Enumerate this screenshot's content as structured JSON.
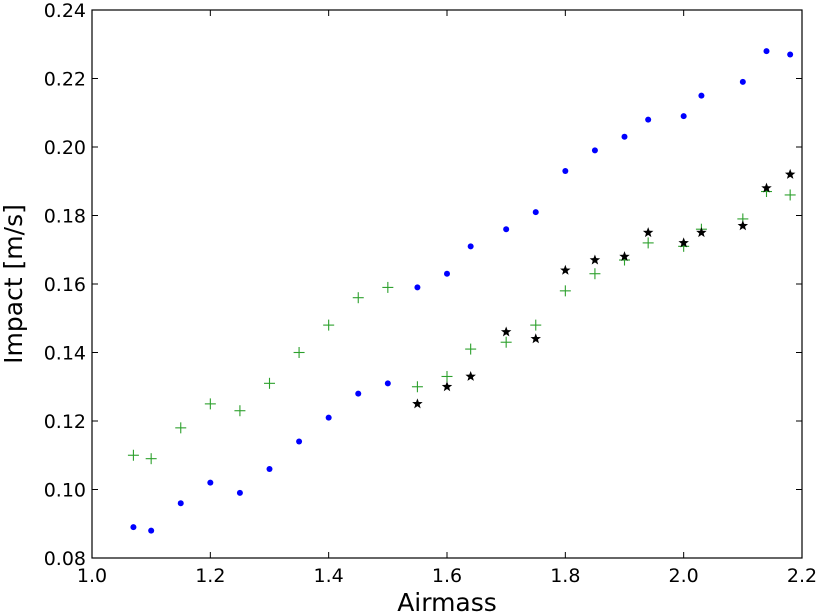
{
  "chart_data": {
    "type": "scatter",
    "xlabel": "Airmass",
    "ylabel": "Impact [m/s]",
    "xlim": [
      1.0,
      2.2
    ],
    "ylim": [
      0.08,
      0.24
    ],
    "xticks": [
      "1.0",
      "1.2",
      "1.4",
      "1.6",
      "1.8",
      "2.0",
      "2.2"
    ],
    "yticks": [
      "0.08",
      "0.10",
      "0.12",
      "0.14",
      "0.16",
      "0.18",
      "0.20",
      "0.22",
      "0.24"
    ],
    "grid": false,
    "legend": "none",
    "series": [
      {
        "marker": "dot",
        "color": "#0000ff",
        "points": [
          [
            1.07,
            0.089
          ],
          [
            1.1,
            0.088
          ],
          [
            1.15,
            0.096
          ],
          [
            1.2,
            0.102
          ],
          [
            1.25,
            0.099
          ],
          [
            1.3,
            0.106
          ],
          [
            1.35,
            0.114
          ],
          [
            1.4,
            0.121
          ],
          [
            1.45,
            0.128
          ],
          [
            1.5,
            0.131
          ],
          [
            1.55,
            0.159
          ],
          [
            1.6,
            0.163
          ],
          [
            1.64,
            0.171
          ],
          [
            1.7,
            0.176
          ],
          [
            1.75,
            0.181
          ],
          [
            1.8,
            0.193
          ],
          [
            1.85,
            0.199
          ],
          [
            1.9,
            0.203
          ],
          [
            1.94,
            0.208
          ],
          [
            2.0,
            0.209
          ],
          [
            2.03,
            0.215
          ],
          [
            2.1,
            0.219
          ],
          [
            2.14,
            0.228
          ],
          [
            2.18,
            0.227
          ]
        ]
      },
      {
        "marker": "plus",
        "color": "#2ca02c",
        "points": [
          [
            1.07,
            0.11
          ],
          [
            1.1,
            0.109
          ],
          [
            1.15,
            0.118
          ],
          [
            1.2,
            0.125
          ],
          [
            1.25,
            0.123
          ],
          [
            1.3,
            0.131
          ],
          [
            1.35,
            0.14
          ],
          [
            1.4,
            0.148
          ],
          [
            1.45,
            0.156
          ],
          [
            1.5,
            0.159
          ],
          [
            1.55,
            0.13
          ],
          [
            1.6,
            0.133
          ],
          [
            1.64,
            0.141
          ],
          [
            1.7,
            0.143
          ],
          [
            1.75,
            0.148
          ],
          [
            1.8,
            0.158
          ],
          [
            1.85,
            0.163
          ],
          [
            1.9,
            0.167
          ],
          [
            1.94,
            0.172
          ],
          [
            2.0,
            0.171
          ],
          [
            2.03,
            0.176
          ],
          [
            2.1,
            0.179
          ],
          [
            2.14,
            0.187
          ],
          [
            2.18,
            0.186
          ]
        ]
      },
      {
        "marker": "star",
        "color": "#000000",
        "points": [
          [
            1.55,
            0.125
          ],
          [
            1.6,
            0.13
          ],
          [
            1.64,
            0.133
          ],
          [
            1.7,
            0.146
          ],
          [
            1.75,
            0.144
          ],
          [
            1.8,
            0.164
          ],
          [
            1.85,
            0.167
          ],
          [
            1.9,
            0.168
          ],
          [
            1.94,
            0.175
          ],
          [
            2.0,
            0.172
          ],
          [
            2.03,
            0.175
          ],
          [
            2.1,
            0.177
          ],
          [
            2.14,
            0.188
          ],
          [
            2.18,
            0.192
          ]
        ]
      }
    ]
  }
}
